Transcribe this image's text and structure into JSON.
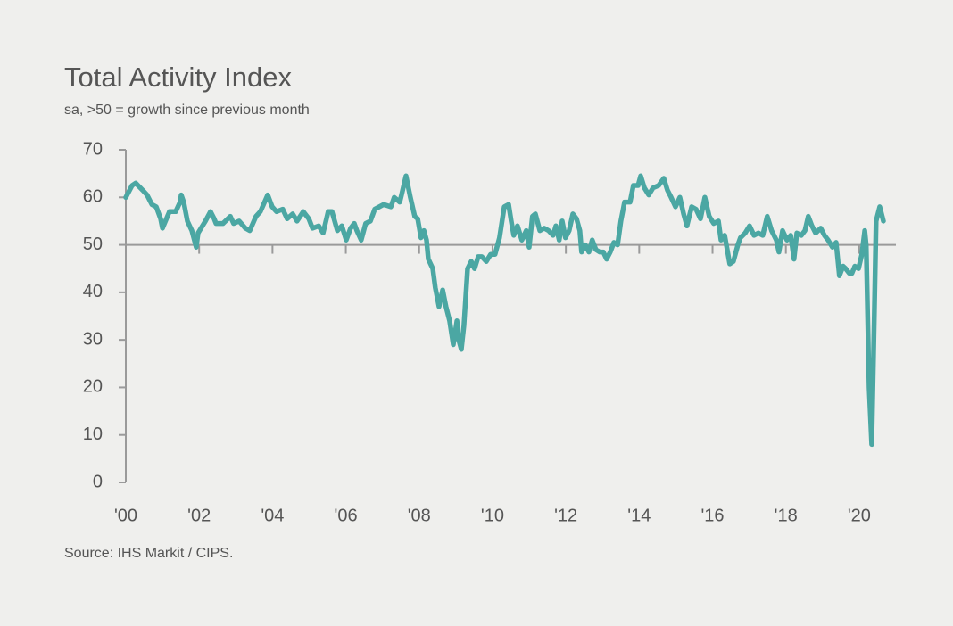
{
  "chart_data": {
    "type": "line",
    "title": "Total Activity Index",
    "subtitle": "sa, >50 = growth since previous month",
    "source": "Source: IHS Markit / CIPS.",
    "x_axis_at": 50,
    "xlim": [
      2000,
      2021
    ],
    "xticks": [
      {
        "value": 2000,
        "label": "'00"
      },
      {
        "value": 2002,
        "label": "'02"
      },
      {
        "value": 2004,
        "label": "'04"
      },
      {
        "value": 2006,
        "label": "'06"
      },
      {
        "value": 2008,
        "label": "'08"
      },
      {
        "value": 2010,
        "label": "'10"
      },
      {
        "value": 2012,
        "label": "'12"
      },
      {
        "value": 2014,
        "label": "'14"
      },
      {
        "value": 2016,
        "label": "'16"
      },
      {
        "value": 2018,
        "label": "'18"
      },
      {
        "value": 2020,
        "label": "'20"
      }
    ],
    "ylim": [
      0,
      70
    ],
    "yticks": [
      0,
      10,
      20,
      30,
      40,
      50,
      60,
      70
    ],
    "x": [
      2000.0,
      2000.17,
      2000.27,
      2000.46,
      2000.58,
      2000.71,
      2000.83,
      2000.95,
      2001.0,
      2001.19,
      2001.36,
      2001.48,
      2001.51,
      2001.58,
      2001.68,
      2001.8,
      2001.92,
      2001.97,
      2002.17,
      2002.31,
      2002.41,
      2002.46,
      2002.65,
      2002.85,
      2002.94,
      2003.09,
      2003.26,
      2003.38,
      2003.55,
      2003.67,
      2003.87,
      2003.99,
      2004.11,
      2004.28,
      2004.4,
      2004.55,
      2004.67,
      2004.84,
      2004.99,
      2005.09,
      2005.26,
      2005.38,
      2005.52,
      2005.62,
      2005.77,
      2005.89,
      2006.01,
      2006.13,
      2006.23,
      2006.3,
      2006.42,
      2006.54,
      2006.67,
      2006.79,
      2006.91,
      2007.03,
      2007.23,
      2007.32,
      2007.47,
      2007.52,
      2007.64,
      2007.76,
      2007.88,
      2007.96,
      2008.05,
      2008.13,
      2008.2,
      2008.25,
      2008.37,
      2008.44,
      2008.54,
      2008.64,
      2008.73,
      2008.83,
      2008.93,
      2009.03,
      2009.08,
      2009.15,
      2009.22,
      2009.32,
      2009.42,
      2009.51,
      2009.61,
      2009.71,
      2009.83,
      2009.95,
      2010.07,
      2010.19,
      2010.32,
      2010.44,
      2010.51,
      2010.58,
      2010.68,
      2010.8,
      2010.92,
      2011.0,
      2011.09,
      2011.17,
      2011.29,
      2011.41,
      2011.53,
      2011.65,
      2011.73,
      2011.82,
      2011.9,
      2011.99,
      2012.09,
      2012.19,
      2012.29,
      2012.38,
      2012.43,
      2012.53,
      2012.63,
      2012.72,
      2012.82,
      2012.92,
      2013.02,
      2013.11,
      2013.21,
      2013.31,
      2013.41,
      2013.5,
      2013.6,
      2013.75,
      2013.84,
      2013.97,
      2014.04,
      2014.14,
      2014.26,
      2014.38,
      2014.53,
      2014.67,
      2014.77,
      2014.87,
      2014.99,
      2015.11,
      2015.21,
      2015.3,
      2015.43,
      2015.55,
      2015.67,
      2015.79,
      2015.91,
      2016.03,
      2016.16,
      2016.23,
      2016.33,
      2016.47,
      2016.57,
      2016.69,
      2016.76,
      2016.89,
      2017.01,
      2017.13,
      2017.25,
      2017.37,
      2017.49,
      2017.61,
      2017.74,
      2017.81,
      2017.91,
      2018.03,
      2018.13,
      2018.22,
      2018.3,
      2018.42,
      2018.52,
      2018.61,
      2018.71,
      2018.81,
      2018.95,
      2019.05,
      2019.15,
      2019.27,
      2019.37,
      2019.46,
      2019.56,
      2019.63,
      2019.73,
      2019.8,
      2019.88,
      2019.98,
      2020.07,
      2020.15,
      2020.19,
      2020.27,
      2020.34,
      2020.41,
      2020.46,
      2020.56,
      2020.66
    ],
    "series": [
      {
        "name": "Total Activity Index",
        "color": "#4ba7a3",
        "values": [
          60,
          62.5,
          63,
          61.5,
          60.5,
          58.5,
          58,
          55.5,
          53.5,
          57,
          57,
          59,
          60.5,
          59,
          55,
          53,
          49.5,
          52.5,
          55,
          57,
          55.5,
          54.5,
          54.5,
          56,
          54.5,
          55,
          53.5,
          53,
          56,
          57,
          60.5,
          58,
          57,
          57.5,
          55.5,
          56.5,
          55,
          57,
          55.5,
          53.5,
          54,
          52.5,
          57,
          57,
          53,
          54,
          51,
          53.5,
          54.5,
          53,
          51,
          54.5,
          55,
          57.5,
          58,
          58.5,
          58,
          60,
          59,
          60.5,
          64.5,
          60,
          56,
          55.5,
          51.5,
          53,
          51,
          47,
          45,
          41,
          37,
          40.5,
          37,
          34,
          29,
          34,
          30,
          28,
          33,
          45,
          46.5,
          45,
          47.5,
          47.5,
          46.5,
          48,
          48,
          51.5,
          58,
          58.5,
          55,
          52,
          54,
          51,
          53,
          49.5,
          56,
          56.5,
          53,
          53.5,
          53,
          52,
          54,
          51,
          55,
          51.5,
          53,
          56.5,
          55.5,
          53,
          48.5,
          50,
          48.5,
          51,
          49,
          48.5,
          48.5,
          47,
          48.5,
          50.5,
          50,
          55,
          59,
          59,
          62.5,
          62.5,
          64.5,
          62,
          60.5,
          62,
          62.5,
          64,
          61.5,
          60,
          58,
          60,
          56.5,
          54,
          58,
          57.5,
          55.5,
          60,
          56,
          54.5,
          55,
          51,
          52,
          46,
          46.5,
          50,
          51.5,
          52.5,
          54,
          52,
          52.5,
          52,
          56,
          53,
          51,
          48.5,
          53,
          51,
          52,
          47,
          52.5,
          52,
          53,
          56,
          54,
          52.5,
          53.5,
          52,
          51,
          49.5,
          50.5,
          43.5,
          45.5,
          45,
          44,
          44,
          45.5,
          45,
          48,
          53,
          50,
          20,
          8,
          35,
          55,
          58,
          55
        ]
      }
    ]
  }
}
